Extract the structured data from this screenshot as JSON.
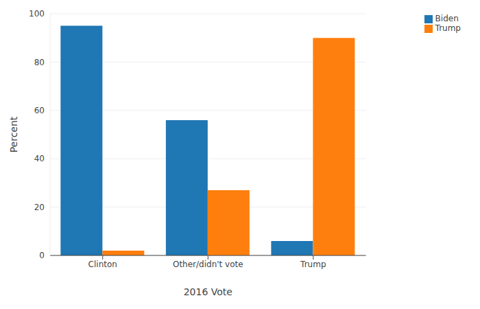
{
  "chart_data": {
    "type": "bar",
    "x_label": "2016 Vote",
    "y_label": "Percent",
    "categories": [
      "Clinton",
      "Other/didn't vote",
      "Trump"
    ],
    "series": [
      {
        "name": "Biden",
        "color": "#1f77b4",
        "values": [
          95,
          56,
          6
        ]
      },
      {
        "name": "Trump",
        "color": "#ff7f0e",
        "values": [
          2,
          27,
          90
        ]
      }
    ],
    "ylim": [
      0,
      100
    ],
    "yticks": [
      0,
      20,
      40,
      60,
      80,
      100
    ],
    "grid": true,
    "legend": "top-right"
  }
}
